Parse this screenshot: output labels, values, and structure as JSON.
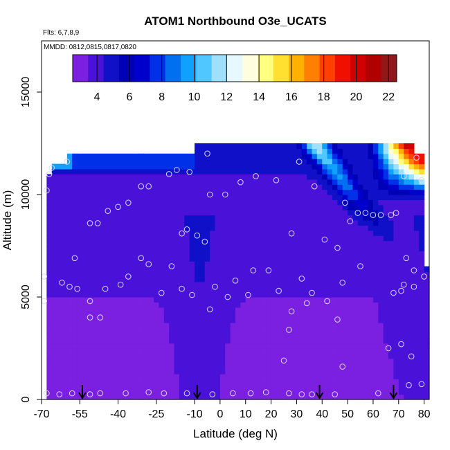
{
  "chart_data": {
    "type": "heatmap",
    "title": "ATOM1 Northbound O3e_UCATS",
    "flights_label": "Flts: 6,7,8,9",
    "dates_label": "MMDD: 0812,0815,0817,0820",
    "xlabel": "Latitude (deg N)",
    "ylabel": "Altitude (m)",
    "xlim": [
      -70,
      82
    ],
    "ylim": [
      0,
      17500
    ],
    "x_ticks": [
      -70,
      -55,
      -40,
      -25,
      -10,
      0,
      10,
      20,
      30,
      40,
      50,
      60,
      70,
      80
    ],
    "x_tick_labels": [
      "-70",
      "-55",
      "-40",
      "-25",
      "-10",
      "0",
      "10",
      "20",
      "30",
      "40",
      "50",
      "60",
      "70",
      "80"
    ],
    "y_ticks": [
      0,
      5000,
      10000,
      15000
    ],
    "y_tick_labels": [
      "0",
      "5000",
      "10000",
      "15000"
    ],
    "colorbar": {
      "range": [
        2.5,
        22.5
      ],
      "ticks": [
        4,
        6,
        8,
        10,
        12,
        14,
        16,
        18,
        20,
        22
      ],
      "tick_labels": [
        "4",
        "6",
        "8",
        "10",
        "12",
        "14",
        "16",
        "18",
        "20",
        "22"
      ],
      "colors": [
        "#7b1fe0",
        "#4a12d8",
        "#1010c8",
        "#0000b4",
        "#0000cc",
        "#0030e8",
        "#0070f0",
        "#10a0ff",
        "#50c8ff",
        "#a0e0ff",
        "#e8f8ff",
        "#fffde0",
        "#ffff80",
        "#ffe030",
        "#ffb000",
        "#ff8000",
        "#ff4000",
        "#f01000",
        "#d00000",
        "#b00000",
        "#901818"
      ]
    },
    "profile_latitudes": [
      -54,
      -9,
      39,
      68
    ],
    "samples": [
      {
        "x": -68,
        "y": 300
      },
      {
        "x": -63,
        "y": 250
      },
      {
        "x": -58,
        "y": 300
      },
      {
        "x": -51,
        "y": 250
      },
      {
        "x": -47,
        "y": 300
      },
      {
        "x": -37,
        "y": 300
      },
      {
        "x": -28,
        "y": 350
      },
      {
        "x": -22,
        "y": 300
      },
      {
        "x": -13,
        "y": 300
      },
      {
        "x": -3,
        "y": 250
      },
      {
        "x": 5,
        "y": 300
      },
      {
        "x": 12,
        "y": 300
      },
      {
        "x": 18,
        "y": 350
      },
      {
        "x": 27,
        "y": 300
      },
      {
        "x": 32,
        "y": 250
      },
      {
        "x": 36,
        "y": 250
      },
      {
        "x": 45,
        "y": 250
      },
      {
        "x": 62,
        "y": 300
      },
      {
        "x": 74,
        "y": 700
      },
      {
        "x": 79,
        "y": 750
      },
      {
        "x": -69,
        "y": 4800
      },
      {
        "x": -69,
        "y": 6000
      },
      {
        "x": -62,
        "y": 5700
      },
      {
        "x": -59,
        "y": 5500
      },
      {
        "x": -56,
        "y": 5400
      },
      {
        "x": -51,
        "y": 4800
      },
      {
        "x": -51,
        "y": 4000
      },
      {
        "x": -47,
        "y": 4000
      },
      {
        "x": -45,
        "y": 5400
      },
      {
        "x": -39,
        "y": 5600
      },
      {
        "x": -36,
        "y": 6000
      },
      {
        "x": -31,
        "y": 6900
      },
      {
        "x": -28,
        "y": 6600
      },
      {
        "x": -23,
        "y": 5200
      },
      {
        "x": -19,
        "y": 6500
      },
      {
        "x": -15,
        "y": 5400
      },
      {
        "x": -11,
        "y": 5100
      },
      {
        "x": -4,
        "y": 4400
      },
      {
        "x": -2,
        "y": 5500
      },
      {
        "x": 3,
        "y": 5000
      },
      {
        "x": 6,
        "y": 5800
      },
      {
        "x": 11,
        "y": 5100
      },
      {
        "x": 13,
        "y": 6300
      },
      {
        "x": 19,
        "y": 6300
      },
      {
        "x": 23,
        "y": 5300
      },
      {
        "x": 28,
        "y": 4300
      },
      {
        "x": 32,
        "y": 5900
      },
      {
        "x": 34,
        "y": 4700
      },
      {
        "x": 36,
        "y": 5200
      },
      {
        "x": 42,
        "y": 4800
      },
      {
        "x": 46,
        "y": 3900
      },
      {
        "x": 48,
        "y": 5700
      },
      {
        "x": 68,
        "y": 5200
      },
      {
        "x": 71,
        "y": 5300
      },
      {
        "x": 72,
        "y": 5600
      },
      {
        "x": 76,
        "y": 5500
      },
      {
        "x": 80,
        "y": 6000
      },
      {
        "x": 27,
        "y": 3400
      },
      {
        "x": 25,
        "y": 1900
      },
      {
        "x": 48,
        "y": 1600
      },
      {
        "x": 66,
        "y": 2500
      },
      {
        "x": 71,
        "y": 2700
      },
      {
        "x": 75,
        "y": 2100
      },
      {
        "x": -57,
        "y": 6900
      },
      {
        "x": -51,
        "y": 8600
      },
      {
        "x": -48,
        "y": 8600
      },
      {
        "x": -44,
        "y": 9200
      },
      {
        "x": -40,
        "y": 9400
      },
      {
        "x": -36,
        "y": 9600
      },
      {
        "x": -31,
        "y": 10400
      },
      {
        "x": -28,
        "y": 10400
      },
      {
        "x": -20,
        "y": 11000
      },
      {
        "x": -15,
        "y": 8100
      },
      {
        "x": -13,
        "y": 8300
      },
      {
        "x": -9,
        "y": 8000
      },
      {
        "x": -6,
        "y": 7700
      },
      {
        "x": -4,
        "y": 10000
      },
      {
        "x": 2,
        "y": 10000
      },
      {
        "x": 8,
        "y": 10600
      },
      {
        "x": 14,
        "y": 10900
      },
      {
        "x": 22,
        "y": 10700
      },
      {
        "x": 28,
        "y": 8100
      },
      {
        "x": 31,
        "y": 11600
      },
      {
        "x": 37,
        "y": 10400
      },
      {
        "x": 41,
        "y": 7800
      },
      {
        "x": 46,
        "y": 7400
      },
      {
        "x": 49,
        "y": 9600
      },
      {
        "x": 51,
        "y": 8700
      },
      {
        "x": 54,
        "y": 9100
      },
      {
        "x": 57,
        "y": 9100
      },
      {
        "x": 60,
        "y": 9000
      },
      {
        "x": 63,
        "y": 9000
      },
      {
        "x": 67,
        "y": 9000
      },
      {
        "x": 69,
        "y": 9100
      },
      {
        "x": 73,
        "y": 6900
      },
      {
        "x": 77,
        "y": 11800
      },
      {
        "x": 79,
        "y": 10700
      },
      {
        "x": 72,
        "y": 10900
      },
      {
        "x": -68,
        "y": 10200
      },
      {
        "x": -67,
        "y": 11000
      },
      {
        "x": -66,
        "y": 11300
      },
      {
        "x": -60,
        "y": 11600
      },
      {
        "x": -17,
        "y": 11200
      },
      {
        "x": -12,
        "y": 11100
      },
      {
        "x": -5,
        "y": 12000
      },
      {
        "x": 76,
        "y": 6300
      },
      {
        "x": 55,
        "y": 6500
      }
    ]
  }
}
